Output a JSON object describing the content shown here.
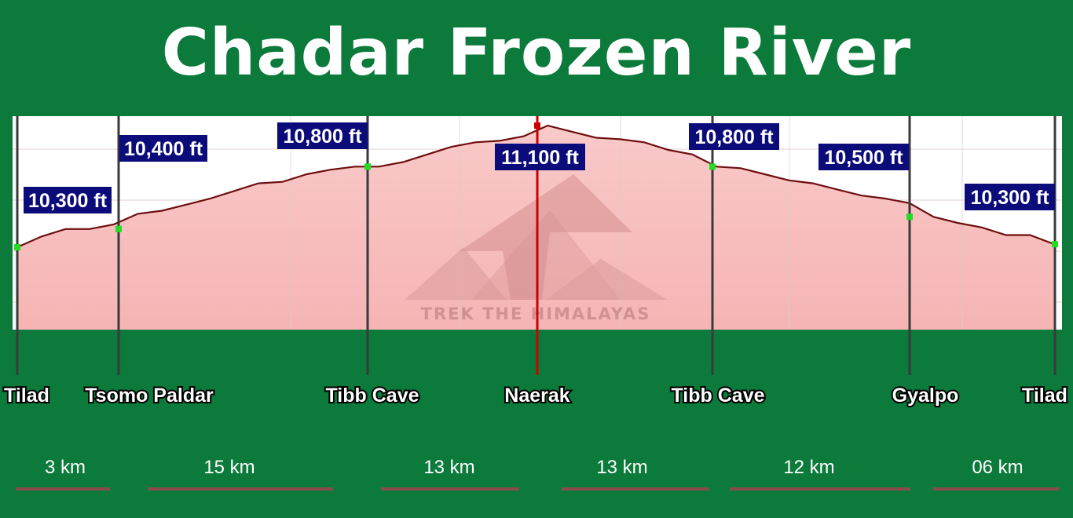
{
  "title": "Chadar Frozen River",
  "watermark": "TREK THE HIMALAYAS",
  "colors": {
    "background": "#0b7a3a",
    "plot_top": "#ffffff",
    "plot_fill": "#f7b9b9",
    "profile_line": "#6e0f0f",
    "label_box": "#0b0b7a",
    "point_marker": "#22dd22",
    "summit_marker": "#cc0000"
  },
  "chart_data": {
    "type": "area",
    "title": "Chadar Frozen River",
    "unit": "ft",
    "grid": true,
    "profile_elevation_ft": [
      10300,
      10370,
      10420,
      10420,
      10450,
      10520,
      10540,
      10580,
      10620,
      10670,
      10720,
      10730,
      10780,
      10810,
      10830,
      10830,
      10860,
      10910,
      10960,
      10990,
      11000,
      11030,
      11100,
      11060,
      11020,
      11010,
      10990,
      10940,
      10910,
      10830,
      10820,
      10780,
      10740,
      10720,
      10680,
      10640,
      10620,
      10590,
      10500,
      10460,
      10430,
      10380,
      10380,
      10320
    ],
    "stops": [
      {
        "place": "Tilad",
        "elevation_label": "10,300 ft",
        "elevation_ft": 10300
      },
      {
        "place": "Tsomo Paldar",
        "elevation_label": "10,400 ft",
        "elevation_ft": 10420
      },
      {
        "place": "Tibb Cave",
        "elevation_label": "10,800 ft",
        "elevation_ft": 10830
      },
      {
        "place": "Naerak",
        "elevation_label": "11,100 ft",
        "elevation_ft": 11100,
        "summit": true
      },
      {
        "place": "Tibb Cave",
        "elevation_label": "10,800 ft",
        "elevation_ft": 10830
      },
      {
        "place": "Gyalpo",
        "elevation_label": "10,500 ft",
        "elevation_ft": 10500
      },
      {
        "place": "Tilad",
        "elevation_label": "10,300 ft",
        "elevation_ft": 10320
      }
    ],
    "segments": [
      {
        "from": "Tilad",
        "to": "Tsomo Paldar",
        "distance": "3 km"
      },
      {
        "from": "Tsomo Paldar",
        "to": "Tibb Cave",
        "distance": "15 km"
      },
      {
        "from": "Tibb Cave",
        "to": "Naerak",
        "distance": "13 km"
      },
      {
        "from": "Naerak",
        "to": "Tibb Cave",
        "distance": "13 km"
      },
      {
        "from": "Tibb Cave",
        "to": "Gyalpo",
        "distance": "12 km"
      },
      {
        "from": "Gyalpo",
        "to": "Tilad",
        "distance": "06 km"
      }
    ]
  }
}
